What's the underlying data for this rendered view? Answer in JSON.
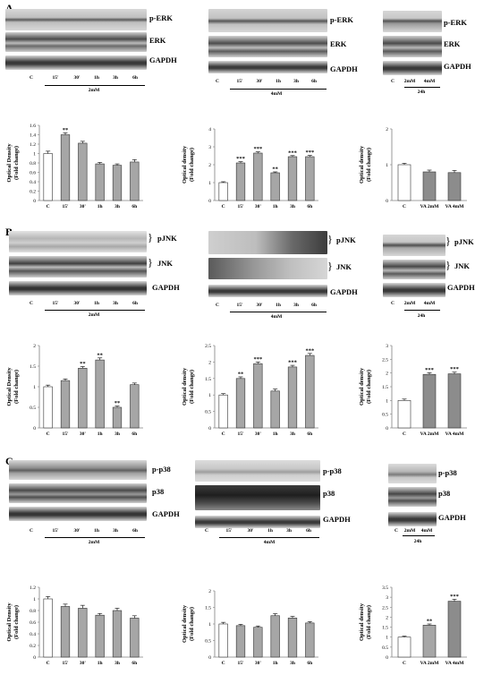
{
  "panels": [
    {
      "letter": "A",
      "blot_labels_a": [
        "p-ERK",
        "ERK",
        "GAPDH"
      ],
      "blot_labels_b": [
        "p-ERK",
        "ERK",
        "GAPDH"
      ],
      "blot_labels_c": [
        "p-ERK",
        "ERK",
        "GAPDH"
      ],
      "lanes": [
        "C",
        "15'",
        "30'",
        "1h",
        "3h",
        "6h"
      ],
      "cond_a": "2mM",
      "cond_b": "4mM",
      "lanes_c": [
        "C",
        "2mM",
        "4mM"
      ],
      "cond_c": "24h"
    },
    {
      "letter": "B",
      "blot_labels_a": [
        "pJNK",
        "JNK",
        "GAPDH"
      ],
      "blot_labels_b": [
        "pJNK",
        "JNK",
        "GAPDH"
      ],
      "blot_labels_c": [
        "pJNK",
        "JNK",
        "GAPDH"
      ],
      "lanes": [
        "C",
        "15'",
        "30'",
        "1h",
        "3h",
        "6h"
      ],
      "cond_a": "2mM",
      "cond_b": "4mM",
      "lanes_c": [
        "C",
        "2mM",
        "4mM"
      ],
      "cond_c": "24h"
    },
    {
      "letter": "C",
      "blot_labels_a": [
        "p-p38",
        "p38",
        "GAPDH"
      ],
      "blot_labels_b": [
        "p-p38",
        "p38",
        "GAPDH"
      ],
      "blot_labels_c": [
        "p-p38",
        "p38",
        "GAPDH"
      ],
      "lanes": [
        "C",
        "15'",
        "30'",
        "1h",
        "3h",
        "6h"
      ],
      "cond_a": "2mM",
      "cond_b": "4mM",
      "lanes_c": [
        "C",
        "2mM",
        "4mM"
      ],
      "cond_c": "24h"
    }
  ],
  "chart_data": [
    {
      "id": "A1",
      "type": "bar",
      "ylabel": [
        "Optical Density",
        "(Fold change)"
      ],
      "categories": [
        "C",
        "15'",
        "30'",
        "1h",
        "3h",
        "6h"
      ],
      "values": [
        1.0,
        1.4,
        1.22,
        0.78,
        0.75,
        0.82
      ],
      "errors": [
        0.05,
        0.04,
        0.04,
        0.03,
        0.03,
        0.05
      ],
      "sig": [
        "",
        "**",
        "",
        "",
        "",
        ""
      ],
      "ylim": [
        0,
        1.6
      ],
      "yticks": [
        0,
        0.2,
        0.4,
        0.6,
        0.8,
        1,
        1.2,
        1.4,
        1.6
      ],
      "colors": [
        "#ffffff",
        "#a6a6a6",
        "#a6a6a6",
        "#a6a6a6",
        "#a6a6a6",
        "#a6a6a6"
      ]
    },
    {
      "id": "A2",
      "type": "bar",
      "ylabel": [
        "Optical density",
        "(Fold change)"
      ],
      "categories": [
        "C",
        "15'",
        "30'",
        "1h",
        "3h",
        "6h"
      ],
      "values": [
        1.0,
        2.1,
        2.65,
        1.55,
        2.45,
        2.45
      ],
      "errors": [
        0.05,
        0.07,
        0.07,
        0.05,
        0.06,
        0.07
      ],
      "sig": [
        "",
        "***",
        "***",
        "**",
        "***",
        "***"
      ],
      "ylim": [
        0,
        4
      ],
      "yticks": [
        0,
        1,
        2,
        3,
        4
      ],
      "colors": [
        "#ffffff",
        "#a6a6a6",
        "#a6a6a6",
        "#a6a6a6",
        "#a6a6a6",
        "#a6a6a6"
      ]
    },
    {
      "id": "A3",
      "type": "bar",
      "ylabel": [
        "Optical density",
        "(Fold change)"
      ],
      "categories": [
        "C",
        "VA 2mM",
        "VA 4mM"
      ],
      "values": [
        1.0,
        0.8,
        0.78
      ],
      "errors": [
        0.04,
        0.05,
        0.06
      ],
      "sig": [
        "",
        "",
        ""
      ],
      "ylim": [
        0,
        2
      ],
      "yticks": [
        0,
        1,
        2
      ],
      "colors": [
        "#ffffff",
        "#8c8c8c",
        "#8c8c8c"
      ]
    },
    {
      "id": "B1",
      "type": "bar",
      "ylabel": [
        "Optical Density",
        "(Fold change)"
      ],
      "categories": [
        "C",
        "15'",
        "30'",
        "1h",
        "3h",
        "6h"
      ],
      "values": [
        1.0,
        1.15,
        1.45,
        1.65,
        0.5,
        1.05
      ],
      "errors": [
        0.04,
        0.04,
        0.04,
        0.05,
        0.03,
        0.04
      ],
      "sig": [
        "",
        "",
        "**",
        "**",
        "**",
        ""
      ],
      "ylim": [
        0,
        2
      ],
      "yticks": [
        0,
        0.5,
        1,
        1.5,
        2
      ],
      "colors": [
        "#ffffff",
        "#a6a6a6",
        "#a6a6a6",
        "#a6a6a6",
        "#a6a6a6",
        "#a6a6a6"
      ]
    },
    {
      "id": "B2",
      "type": "bar",
      "ylabel": [
        "Optical density",
        "(Fold change)"
      ],
      "categories": [
        "C",
        "15'",
        "30'",
        "1h",
        "3h",
        "6h"
      ],
      "values": [
        1.0,
        1.5,
        1.95,
        1.12,
        1.85,
        2.2
      ],
      "errors": [
        0.04,
        0.05,
        0.05,
        0.06,
        0.05,
        0.06
      ],
      "sig": [
        "",
        "**",
        "***",
        "",
        "***",
        "***"
      ],
      "ylim": [
        0,
        2.5
      ],
      "yticks": [
        0,
        0.5,
        1,
        1.5,
        2,
        2.5
      ],
      "colors": [
        "#ffffff",
        "#a6a6a6",
        "#a6a6a6",
        "#a6a6a6",
        "#a6a6a6",
        "#a6a6a6"
      ]
    },
    {
      "id": "B3",
      "type": "bar",
      "ylabel": [
        "Optical density",
        "(Fold change)"
      ],
      "categories": [
        "C",
        "VA 2mM",
        "VA 4mM"
      ],
      "values": [
        1.0,
        1.95,
        1.97
      ],
      "errors": [
        0.05,
        0.06,
        0.06
      ],
      "sig": [
        "",
        "***",
        "***"
      ],
      "ylim": [
        0,
        3
      ],
      "yticks": [
        0,
        0.5,
        1,
        1.5,
        2,
        2.5,
        3
      ],
      "colors": [
        "#ffffff",
        "#8c8c8c",
        "#8c8c8c"
      ]
    },
    {
      "id": "C1",
      "type": "bar",
      "ylabel": [
        "Optical Density",
        "(Fold change)"
      ],
      "categories": [
        "C",
        "15'",
        "30'",
        "1h",
        "3h",
        "6h"
      ],
      "values": [
        1.0,
        0.87,
        0.84,
        0.72,
        0.8,
        0.67
      ],
      "errors": [
        0.04,
        0.04,
        0.05,
        0.03,
        0.04,
        0.04
      ],
      "sig": [
        "",
        "",
        "",
        "",
        "",
        ""
      ],
      "ylim": [
        0,
        1.2
      ],
      "yticks": [
        0,
        0.2,
        0.4,
        0.6,
        0.8,
        1,
        1.2
      ],
      "colors": [
        "#ffffff",
        "#a6a6a6",
        "#a6a6a6",
        "#a6a6a6",
        "#a6a6a6",
        "#a6a6a6"
      ]
    },
    {
      "id": "C2",
      "type": "bar",
      "ylabel": [
        "Optical density",
        "(Fold change)"
      ],
      "categories": [
        "C",
        "15'",
        "30'",
        "1h",
        "3h",
        "6h"
      ],
      "values": [
        1.0,
        0.95,
        0.9,
        1.25,
        1.18,
        1.03
      ],
      "errors": [
        0.05,
        0.04,
        0.04,
        0.06,
        0.05,
        0.04
      ],
      "sig": [
        "",
        "",
        "",
        "",
        "",
        ""
      ],
      "ylim": [
        0,
        2
      ],
      "yticks": [
        0,
        0.5,
        1,
        1.5,
        2
      ],
      "colors": [
        "#ffffff",
        "#a6a6a6",
        "#a6a6a6",
        "#a6a6a6",
        "#a6a6a6",
        "#a6a6a6"
      ]
    },
    {
      "id": "C3",
      "type": "bar",
      "ylabel": [
        "Optical density",
        "(Fold change)"
      ],
      "categories": [
        "C",
        "VA 2mM",
        "VA 4mM"
      ],
      "values": [
        1.0,
        1.6,
        2.8
      ],
      "errors": [
        0.05,
        0.06,
        0.1
      ],
      "sig": [
        "",
        "**",
        "***"
      ],
      "ylim": [
        0,
        3.5
      ],
      "yticks": [
        0,
        0.5,
        1,
        1.5,
        2,
        2.5,
        3,
        3.5
      ],
      "colors": [
        "#ffffff",
        "#a6a6a6",
        "#8c8c8c"
      ]
    }
  ]
}
